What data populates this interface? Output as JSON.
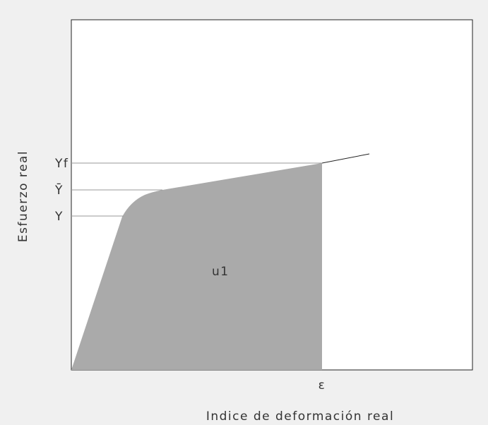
{
  "diagram": {
    "y_axis_label": "Esfuerzo real",
    "x_axis_label": "Indice de deformación real",
    "levels": [
      "Yf",
      "Ȳ",
      "Y"
    ],
    "strain_label": "ε",
    "area_label": "u1"
  }
}
